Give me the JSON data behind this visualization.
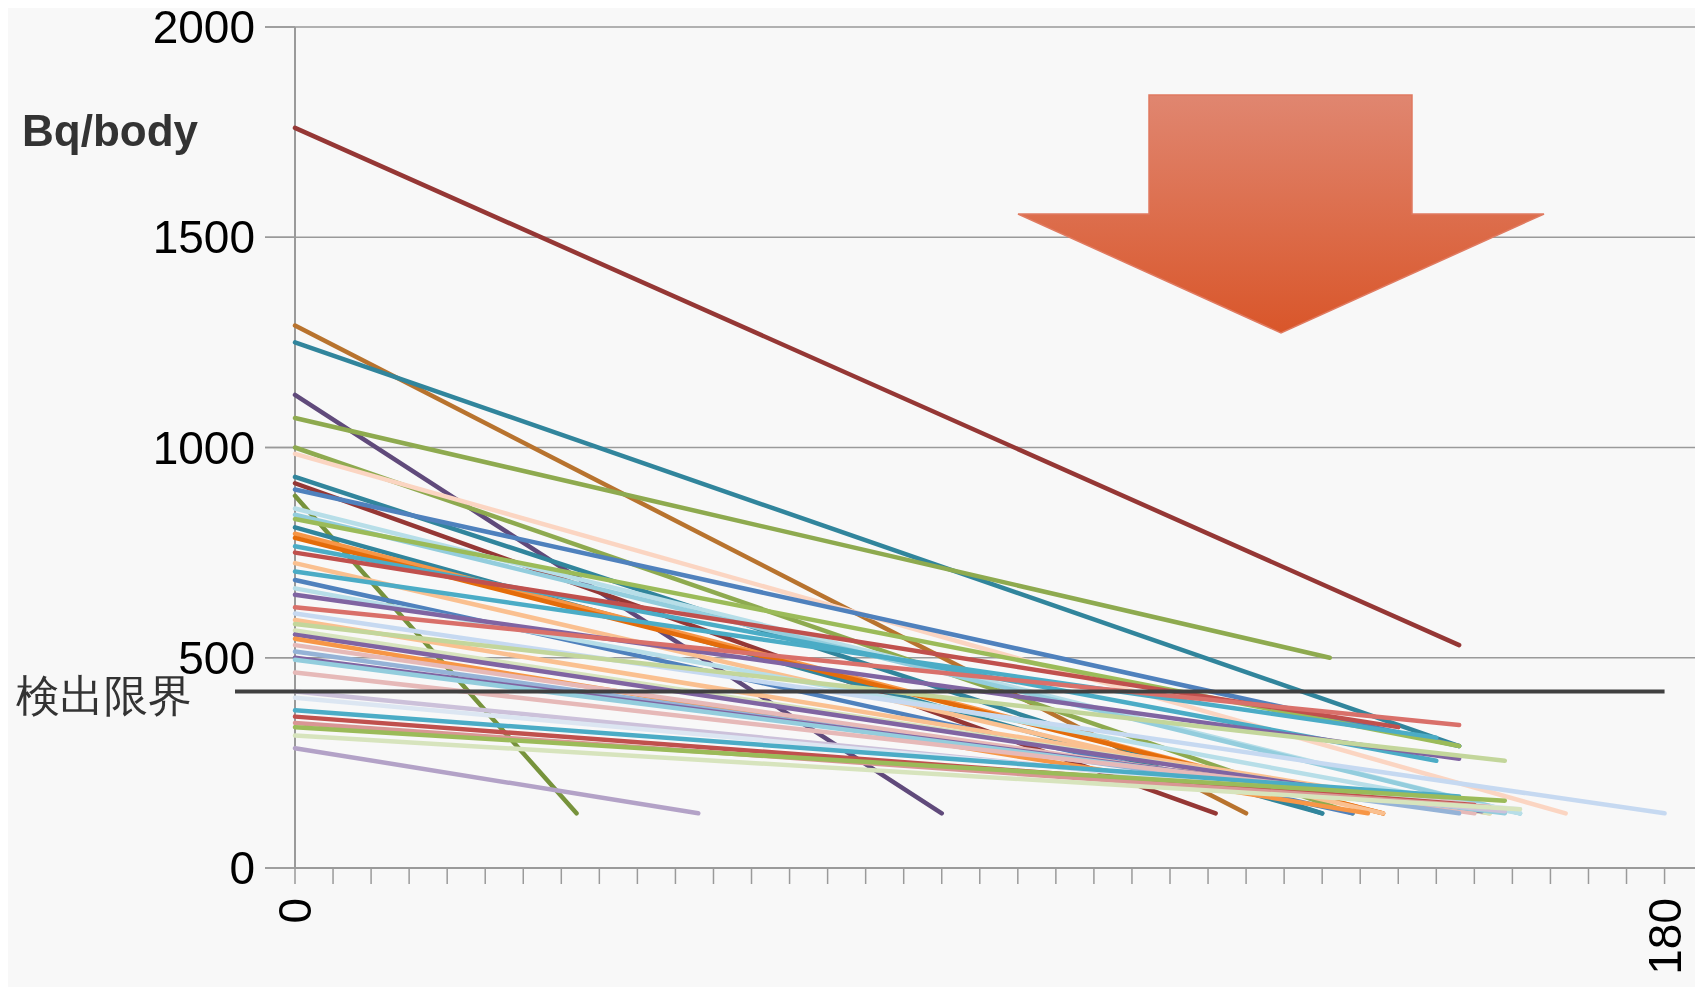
{
  "chart_data": {
    "type": "line",
    "ylabel": "Bq/body",
    "xlim": [
      0,
      184
    ],
    "ylim": [
      0,
      2000
    ],
    "yticks": [
      0,
      500,
      1000,
      1500,
      2000
    ],
    "xticks": [
      0,
      {
        "value": 5,
        "label": null
      },
      {
        "value": 10,
        "label": null
      },
      {
        "value": 15,
        "label": null
      },
      {
        "value": 20,
        "label": null
      },
      {
        "value": 25,
        "label": null
      },
      {
        "value": 30,
        "label": null
      },
      {
        "value": 35,
        "label": null
      },
      {
        "value": 40,
        "label": null
      },
      {
        "value": 45,
        "label": null
      },
      {
        "value": 50,
        "label": null
      },
      {
        "value": 55,
        "label": null
      },
      {
        "value": 60,
        "label": null
      },
      {
        "value": 65,
        "label": null
      },
      {
        "value": 70,
        "label": null
      },
      {
        "value": 75,
        "label": null
      },
      {
        "value": 80,
        "label": null
      },
      {
        "value": 85,
        "label": null
      },
      {
        "value": 90,
        "label": null
      },
      {
        "value": 95,
        "label": null
      },
      {
        "value": 100,
        "label": null
      },
      {
        "value": 105,
        "label": null
      },
      {
        "value": 110,
        "label": null
      },
      {
        "value": 115,
        "label": null
      },
      {
        "value": 120,
        "label": null
      },
      {
        "value": 125,
        "label": null
      },
      {
        "value": 130,
        "label": null
      },
      {
        "value": 135,
        "label": null
      },
      {
        "value": 140,
        "label": null
      },
      {
        "value": 145,
        "label": null
      },
      {
        "value": 150,
        "label": null
      },
      {
        "value": 155,
        "label": null
      },
      {
        "value": 160,
        "label": null
      },
      {
        "value": 165,
        "label": null
      },
      {
        "value": 170,
        "label": null
      },
      {
        "value": 175,
        "label": null
      },
      180
    ],
    "grid": "y",
    "ref_lines": [
      {
        "axis": "y",
        "value": 420,
        "label": "検出限界",
        "color": "#404040"
      }
    ],
    "series": [
      {
        "color": "#953735",
        "x": [
          0,
          153
        ],
        "values": [
          1760,
          530
        ]
      },
      {
        "color": "#b8732e",
        "x": [
          0,
          125
        ],
        "values": [
          1290,
          130
        ]
      },
      {
        "color": "#31859c",
        "x": [
          0,
          153
        ],
        "values": [
          1250,
          290
        ]
      },
      {
        "color": "#604a7b",
        "x": [
          0,
          85
        ],
        "values": [
          1125,
          130
        ]
      },
      {
        "color": "#8eaa4f",
        "x": [
          0,
          136
        ],
        "values": [
          1070,
          500
        ]
      },
      {
        "color": "#8eaa4f",
        "x": [
          0,
          139
        ],
        "values": [
          1000,
          130
        ]
      },
      {
        "color": "#fbd5c2",
        "x": [
          0,
          167
        ],
        "values": [
          985,
          130
        ]
      },
      {
        "color": "#31859c",
        "x": [
          0,
          135
        ],
        "values": [
          930,
          130
        ]
      },
      {
        "color": "#953735",
        "x": [
          0,
          121
        ],
        "values": [
          915,
          130
        ]
      },
      {
        "color": "#4f81bd",
        "x": [
          0,
          153
        ],
        "values": [
          900,
          290
        ]
      },
      {
        "color": "#77933c",
        "x": [
          0,
          37
        ],
        "values": [
          885,
          130
        ]
      },
      {
        "color": "#b7dee8",
        "x": [
          0,
          161
        ],
        "values": [
          855,
          130
        ]
      },
      {
        "color": "#93cddd",
        "x": [
          0,
          161
        ],
        "values": [
          840,
          130
        ]
      },
      {
        "color": "#9bbb59",
        "x": [
          0,
          153
        ],
        "values": [
          830,
          290
        ]
      },
      {
        "color": "#31859c",
        "x": [
          0,
          135
        ],
        "values": [
          810,
          130
        ]
      },
      {
        "color": "#f79646",
        "x": [
          0,
          143
        ],
        "values": [
          795,
          130
        ]
      },
      {
        "color": "#e46c0a",
        "x": [
          0,
          143
        ],
        "values": [
          785,
          130
        ]
      },
      {
        "color": "#4bacc6",
        "x": [
          0,
          150
        ],
        "values": [
          765,
          255
        ]
      },
      {
        "color": "#c0504d",
        "x": [
          0,
          145
        ],
        "values": [
          750,
          335
        ]
      },
      {
        "color": "#fac090",
        "x": [
          0,
          143
        ],
        "values": [
          725,
          130
        ]
      },
      {
        "color": "#4bacc6",
        "x": [
          0,
          150
        ],
        "values": [
          705,
          310
        ]
      },
      {
        "color": "#4f81bd",
        "x": [
          0,
          139
        ],
        "values": [
          685,
          130
        ]
      },
      {
        "color": "#b7dee8",
        "x": [
          0,
          161
        ],
        "values": [
          665,
          130
        ]
      },
      {
        "color": "#8064a2",
        "x": [
          0,
          153
        ],
        "values": [
          650,
          260
        ]
      },
      {
        "color": "#d9706a",
        "x": [
          0,
          153
        ],
        "values": [
          620,
          340
        ]
      },
      {
        "color": "#c6d9f1",
        "x": [
          0,
          180
        ],
        "values": [
          605,
          130
        ]
      },
      {
        "color": "#fac090",
        "x": [
          0,
          157
        ],
        "values": [
          590,
          130
        ]
      },
      {
        "color": "#c3d69b",
        "x": [
          0,
          159
        ],
        "values": [
          580,
          255
        ]
      },
      {
        "color": "#d7e4bd",
        "x": [
          0,
          157
        ],
        "values": [
          565,
          130
        ]
      },
      {
        "color": "#8064a2",
        "x": [
          0,
          156
        ],
        "values": [
          555,
          135
        ]
      },
      {
        "color": "#f79646",
        "x": [
          0,
          141
        ],
        "values": [
          545,
          130
        ]
      },
      {
        "color": "#e6b9b8",
        "x": [
          0,
          155
        ],
        "values": [
          530,
          130
        ]
      },
      {
        "color": "#95b3d7",
        "x": [
          0,
          153
        ],
        "values": [
          515,
          130
        ]
      },
      {
        "color": "#8064a2",
        "x": [
          0,
          155
        ],
        "values": [
          500,
          140
        ]
      },
      {
        "color": "#93cddd",
        "x": [
          0,
          159
        ],
        "values": [
          495,
          130
        ]
      },
      {
        "color": "#e6b9b8",
        "x": [
          0,
          155
        ],
        "values": [
          465,
          150
        ]
      },
      {
        "color": "#ccc1da",
        "x": [
          0,
          159
        ],
        "values": [
          420,
          135
        ]
      },
      {
        "color": "#dce6f2",
        "x": [
          0,
          161
        ],
        "values": [
          405,
          140
        ]
      },
      {
        "color": "#4bacc6",
        "x": [
          0,
          153
        ],
        "values": [
          375,
          170
        ]
      },
      {
        "color": "#c0504d",
        "x": [
          0,
          155
        ],
        "values": [
          360,
          150
        ]
      },
      {
        "color": "#d99694",
        "x": [
          0,
          157
        ],
        "values": [
          345,
          145
        ]
      },
      {
        "color": "#9bbb59",
        "x": [
          0,
          159
        ],
        "values": [
          335,
          160
        ]
      },
      {
        "color": "#d7e4bd",
        "x": [
          0,
          161
        ],
        "values": [
          315,
          140
        ]
      },
      {
        "color": "#b3a2c7",
        "x": [
          0,
          53
        ],
        "values": [
          285,
          130
        ]
      }
    ]
  }
}
